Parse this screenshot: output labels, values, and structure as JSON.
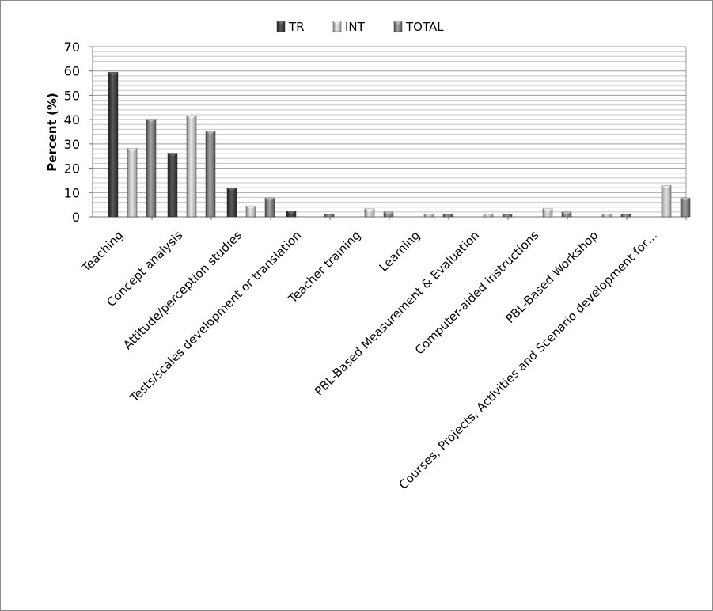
{
  "chart_data": {
    "type": "bar",
    "ylabel": "Percent (%)",
    "xlabel": "",
    "title": "",
    "ylim": [
      0,
      70
    ],
    "yticks": [
      0,
      10,
      20,
      30,
      40,
      50,
      60,
      70
    ],
    "grid": true,
    "legend_position": "top-center",
    "categories": [
      "Teaching",
      "Concept analysis",
      "Attitude/perception studies",
      "Tests/scales development or translation",
      "Teacher training",
      "Learning",
      "PBL-Based Measurement & Evaluation",
      "Computer-aided instructions",
      "PBL-Based Workshop",
      "Courses, Projects, Activities and Scenario development for…"
    ],
    "series": [
      {
        "name": "TR",
        "color": "#3a3a3a",
        "values": [
          59.5,
          26.2,
          11.9,
          2.4,
          0,
          0,
          0,
          0,
          0,
          0
        ]
      },
      {
        "name": "INT",
        "color": "#b4b4b4",
        "values": [
          28.2,
          41.6,
          4.5,
          0,
          3.4,
          1.1,
          1.1,
          3.4,
          1.1,
          12.9
        ]
      },
      {
        "name": "TOTAL",
        "color": "#7a7a7a",
        "values": [
          40.2,
          35.3,
          7.8,
          1.0,
          2.0,
          1.0,
          1.0,
          2.0,
          1.0,
          7.8
        ]
      }
    ]
  }
}
